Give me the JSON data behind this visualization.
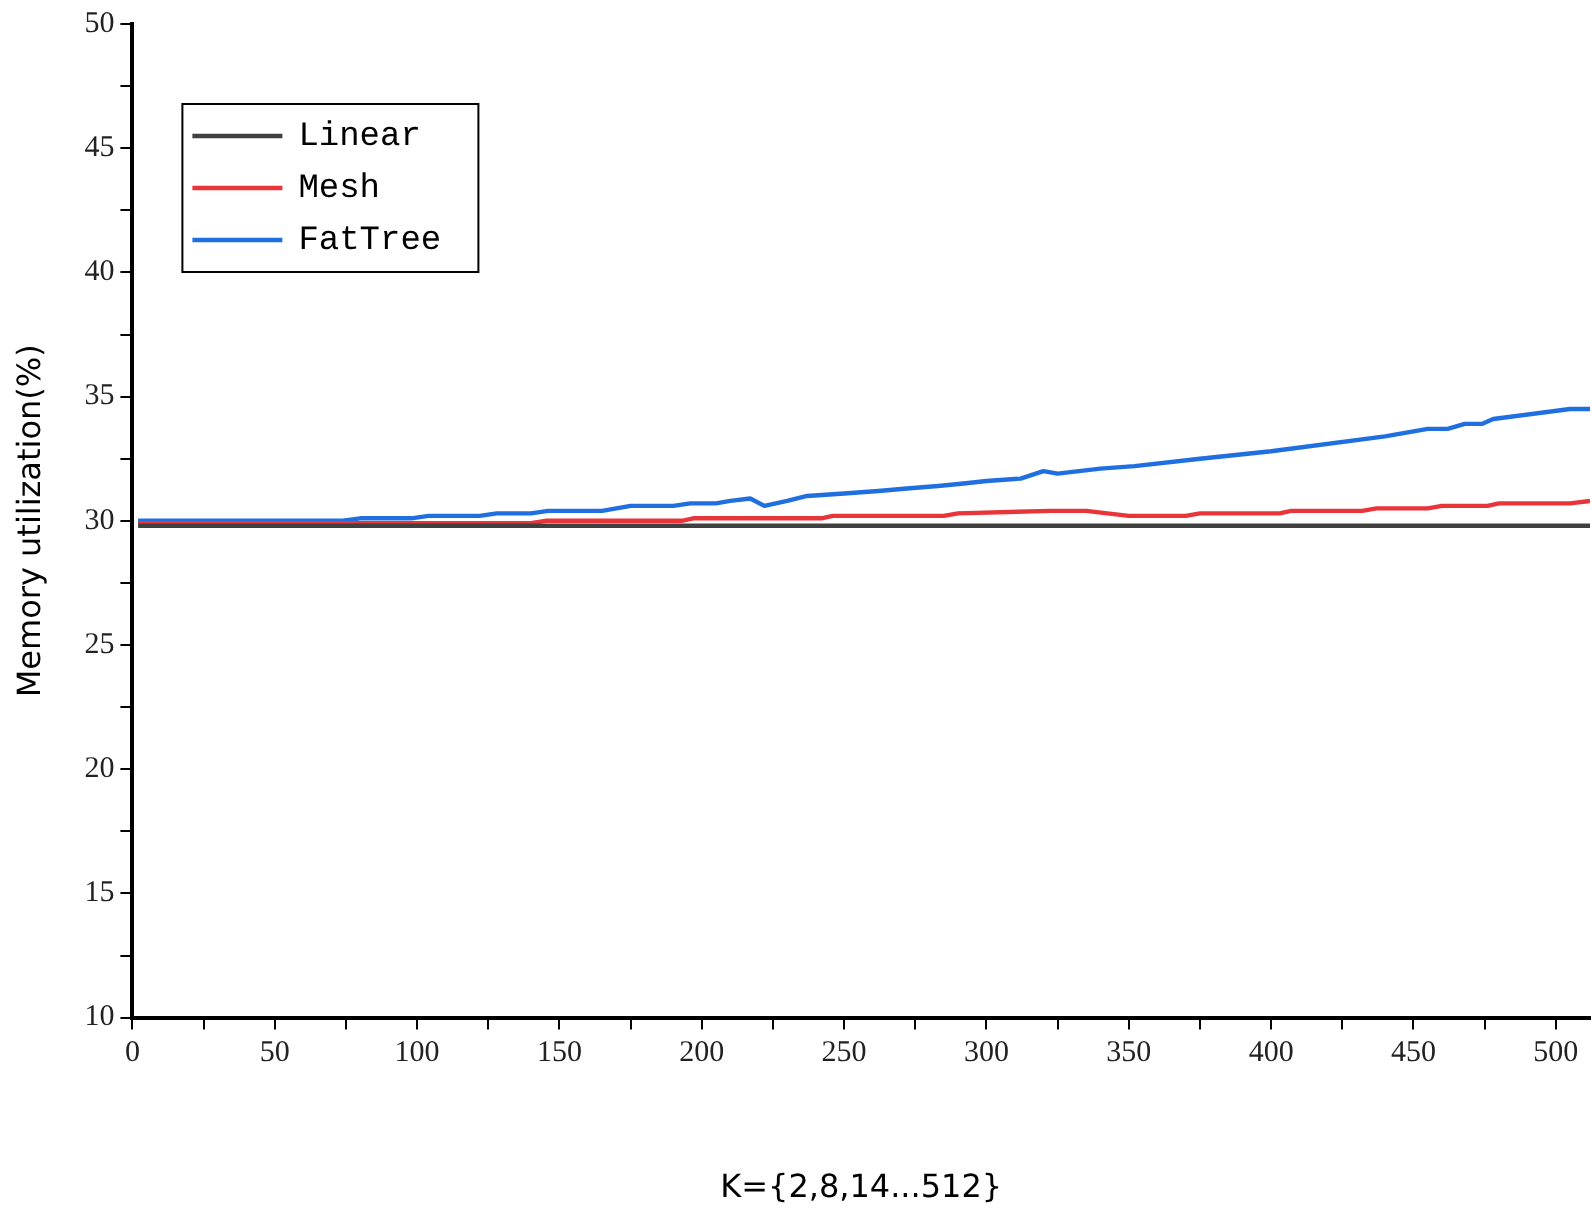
{
  "chart_data": {
    "type": "line",
    "xlabel": "K={2,8,14...512}",
    "ylabel": "Memory utilization(%)",
    "xlim": [
      0,
      512
    ],
    "xticks": [
      0,
      {
        "value": 25,
        "label": null
      },
      50,
      {
        "value": 75,
        "label": null
      },
      100,
      {
        "value": 125,
        "label": null
      },
      150,
      {
        "value": 175,
        "label": null
      },
      200,
      {
        "value": 225,
        "label": null
      },
      250,
      {
        "value": 275,
        "label": null
      },
      300,
      {
        "value": 325,
        "label": null
      },
      350,
      {
        "value": 375,
        "label": null
      },
      400,
      {
        "value": 425,
        "label": null
      },
      450,
      {
        "value": 475,
        "label": null
      },
      500
    ],
    "ylim": [
      10,
      50
    ],
    "yticks": [
      10,
      {
        "value": 12.5,
        "label": null
      },
      15,
      {
        "value": 17.5,
        "label": null
      },
      20,
      {
        "value": 22.5,
        "label": null
      },
      25,
      {
        "value": 27.5,
        "label": null
      },
      30,
      {
        "value": 32.5,
        "label": null
      },
      35,
      {
        "value": 37.5,
        "label": null
      },
      40,
      {
        "value": 42.5,
        "label": null
      },
      45,
      {
        "value": 47.5,
        "label": null
      },
      50
    ],
    "grid": false,
    "legend": "top left",
    "marker": "none",
    "line_style": "solid",
    "series": [
      {
        "name": "Linear",
        "color": "#404040",
        "x": [
          2,
          512
        ],
        "values": [
          29.8,
          29.8
        ]
      },
      {
        "name": "Mesh",
        "color": "#e8353a",
        "x": [
          2,
          140,
          145,
          193,
          197,
          242,
          246,
          285,
          290,
          323,
          335,
          350,
          370,
          375,
          403,
          407,
          432,
          437,
          455,
          460,
          476,
          480,
          505,
          512
        ],
        "values": [
          29.9,
          29.9,
          30.0,
          30.0,
          30.1,
          30.1,
          30.2,
          30.2,
          30.3,
          30.4,
          30.4,
          30.2,
          30.2,
          30.3,
          30.3,
          30.4,
          30.4,
          30.5,
          30.5,
          30.6,
          30.6,
          30.7,
          30.7,
          30.8
        ]
      },
      {
        "name": "FatTree",
        "color": "#1f6fe0",
        "x": [
          2,
          74,
          80,
          98,
          104,
          122,
          128,
          140,
          146,
          165,
          175,
          190,
          196,
          205,
          210,
          217,
          222,
          230,
          237,
          250,
          262,
          272,
          283,
          292,
          300,
          312,
          320,
          325,
          340,
          352,
          375,
          400,
          440,
          455,
          462,
          468,
          474,
          478,
          505,
          512
        ],
        "values": [
          30.0,
          30.0,
          30.1,
          30.1,
          30.2,
          30.2,
          30.3,
          30.3,
          30.4,
          30.4,
          30.6,
          30.6,
          30.7,
          30.7,
          30.8,
          30.9,
          30.6,
          30.8,
          31.0,
          31.1,
          31.2,
          31.3,
          31.4,
          31.5,
          31.6,
          31.7,
          32.0,
          31.9,
          32.1,
          32.2,
          32.5,
          32.8,
          33.4,
          33.7,
          33.7,
          33.9,
          33.9,
          34.1,
          34.5,
          34.5
        ]
      }
    ]
  }
}
